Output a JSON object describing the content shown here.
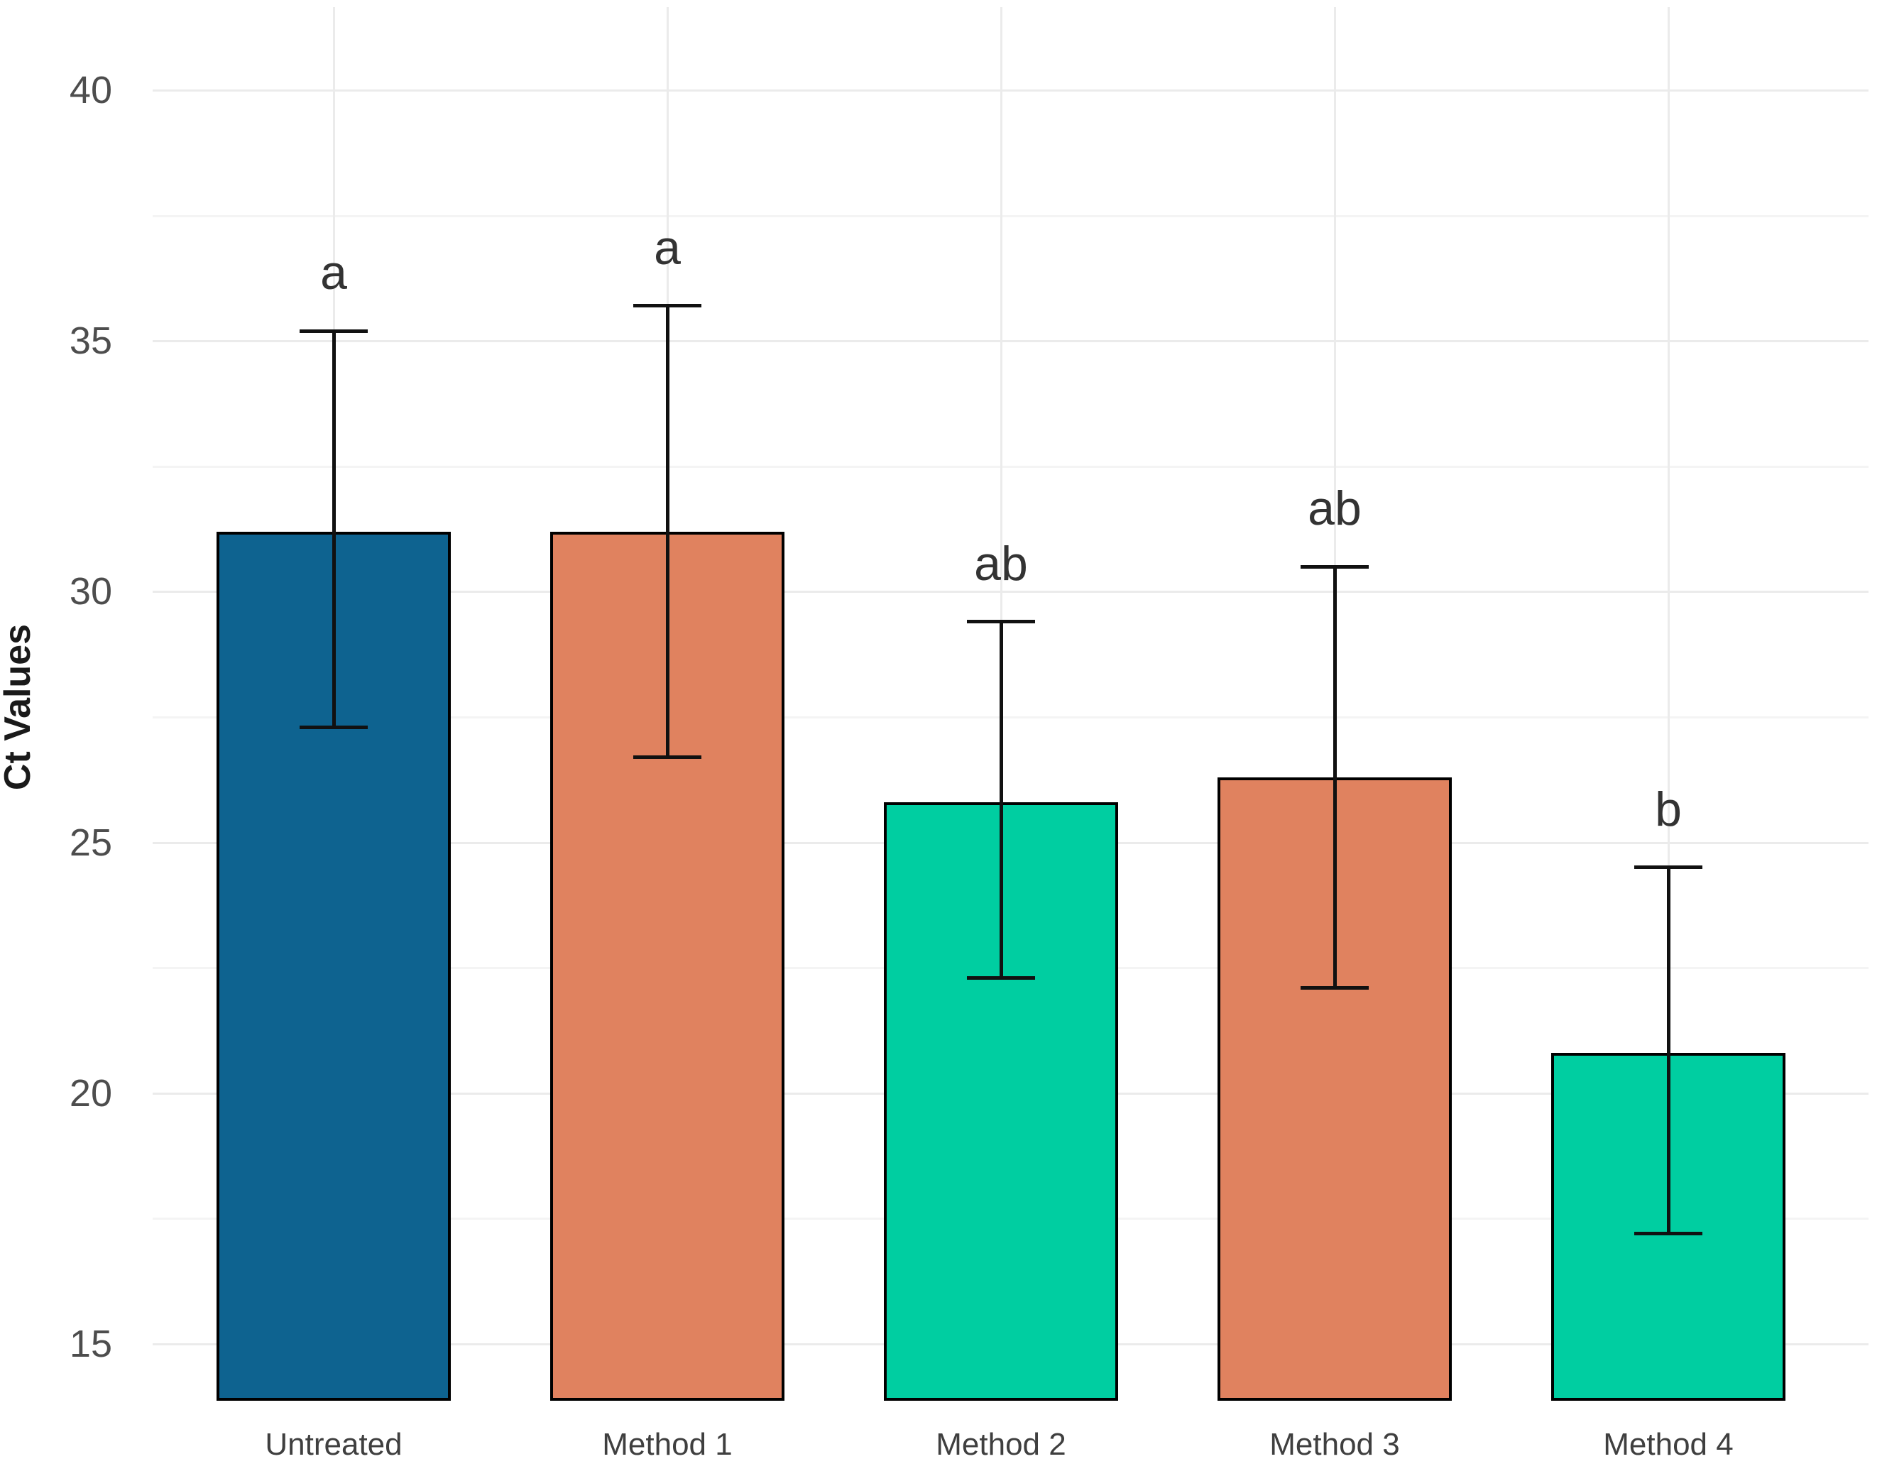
{
  "chart_data": {
    "type": "bar",
    "title": "",
    "ylabel": "Ct Values",
    "xlabel": "",
    "categories": [
      "Untreated",
      "Method 1",
      "Method 2",
      "Method 3",
      "Method 4"
    ],
    "values": [
      31.2,
      31.2,
      25.8,
      26.3,
      20.8
    ],
    "error_low": [
      27.3,
      26.7,
      22.3,
      22.1,
      17.2
    ],
    "error_high": [
      35.2,
      35.7,
      29.4,
      30.5,
      24.5
    ],
    "sig_letters": [
      "a",
      "a",
      "ab",
      "ab",
      "b"
    ],
    "bar_colors": [
      "#0E6390",
      "#E0825F",
      "#00CEA1",
      "#E0825F",
      "#00CEA1"
    ],
    "bar_border_color": "#000000",
    "error_bar_color": "#111111",
    "y_major_ticks": [
      40,
      35,
      30,
      25,
      20,
      15
    ],
    "y_minor_ticks": [
      37.5,
      32.5,
      27.5,
      22.5,
      17.5
    ],
    "ylim": [
      13.87,
      41.6
    ],
    "grid": "horizontal major+minor full width; vertical major at category centers",
    "legend": "none",
    "background_color": "#ffffff",
    "grid_major_color": "#ebebeb",
    "grid_minor_color": "#f4f4f4",
    "tick_label_color": "#4d4d4d",
    "x_label_color": "#3f3f3f",
    "axis_title_color": "#1a1a1a",
    "sig_letter_color": "#333333"
  }
}
